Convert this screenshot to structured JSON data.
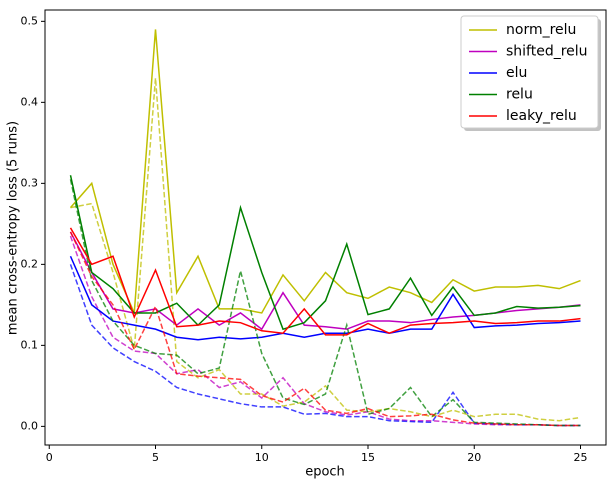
{
  "chart_data": {
    "type": "line",
    "x_label": "epoch",
    "y_label": "mean cross-entropy loss (5 runs)",
    "x": [
      1,
      2,
      3,
      4,
      5,
      6,
      7,
      8,
      9,
      10,
      11,
      12,
      13,
      14,
      15,
      16,
      17,
      18,
      19,
      20,
      21,
      22,
      23,
      24,
      25
    ],
    "xlim": [
      -0.2,
      26.2
    ],
    "xticks": [
      0,
      5,
      10,
      15,
      20,
      25
    ],
    "ylim": [
      -0.023,
      0.514
    ],
    "yticks": [
      {
        "value": 0,
        "label": "0.0"
      },
      0.1,
      0.2,
      0.3,
      0.4,
      0.5
    ],
    "legend": "upper right",
    "series": [
      {
        "name": "norm_relu",
        "color": "#bfbf00",
        "values": [
          0.27,
          0.3,
          0.2,
          0.14,
          0.49,
          0.165,
          0.21,
          0.145,
          0.145,
          0.14,
          0.187,
          0.155,
          0.19,
          0.165,
          0.158,
          0.172,
          0.165,
          0.153,
          0.181,
          0.167,
          0.172,
          0.172,
          0.174,
          0.17,
          0.18
        ],
        "dashed_values": [
          0.27,
          0.275,
          0.19,
          0.095,
          0.43,
          0.08,
          0.06,
          0.07,
          0.04,
          0.04,
          0.025,
          0.03,
          0.05,
          0.02,
          0.018,
          0.022,
          0.018,
          0.012,
          0.02,
          0.012,
          0.015,
          0.015,
          0.009,
          0.007,
          0.011
        ]
      },
      {
        "name": "shifted_relu",
        "color": "#bf00bf",
        "values": [
          0.24,
          0.19,
          0.145,
          0.14,
          0.145,
          0.125,
          0.145,
          0.125,
          0.14,
          0.12,
          0.165,
          0.125,
          0.123,
          0.12,
          0.13,
          0.13,
          0.128,
          0.132,
          0.135,
          0.137,
          0.14,
          0.143,
          0.145,
          0.147,
          0.15
        ],
        "dashed_values": [
          0.235,
          0.16,
          0.11,
          0.093,
          0.09,
          0.065,
          0.07,
          0.048,
          0.055,
          0.035,
          0.06,
          0.028,
          0.018,
          0.014,
          0.018,
          0.009,
          0.007,
          0.007,
          0.005,
          0.003,
          0.002,
          0.002,
          0.002,
          0.001,
          0.001
        ]
      },
      {
        "name": "elu",
        "color": "#0000ff",
        "values": [
          0.21,
          0.15,
          0.13,
          0.125,
          0.12,
          0.11,
          0.107,
          0.11,
          0.108,
          0.11,
          0.115,
          0.11,
          0.115,
          0.115,
          0.12,
          0.115,
          0.12,
          0.12,
          0.163,
          0.122,
          0.124,
          0.125,
          0.127,
          0.128,
          0.13
        ],
        "dashed_values": [
          0.2,
          0.125,
          0.097,
          0.08,
          0.068,
          0.048,
          0.04,
          0.034,
          0.028,
          0.024,
          0.024,
          0.015,
          0.016,
          0.012,
          0.012,
          0.007,
          0.006,
          0.005,
          0.042,
          0.004,
          0.003,
          0.002,
          0.002,
          0.001,
          0.001
        ]
      },
      {
        "name": "relu",
        "color": "#008000",
        "values": [
          0.31,
          0.19,
          0.17,
          0.14,
          0.14,
          0.152,
          0.125,
          0.15,
          0.27,
          0.19,
          0.12,
          0.128,
          0.155,
          0.225,
          0.138,
          0.145,
          0.183,
          0.137,
          0.172,
          0.137,
          0.14,
          0.148,
          0.146,
          0.147,
          0.149
        ],
        "dashed_values": [
          0.305,
          0.18,
          0.13,
          0.1,
          0.09,
          0.088,
          0.065,
          0.072,
          0.192,
          0.09,
          0.035,
          0.027,
          0.04,
          0.125,
          0.015,
          0.022,
          0.048,
          0.012,
          0.033,
          0.005,
          0.004,
          0.003,
          0.002,
          0.001,
          0.001
        ]
      },
      {
        "name": "leaky_relu",
        "color": "#ff0000",
        "values": [
          0.245,
          0.2,
          0.21,
          0.135,
          0.193,
          0.123,
          0.125,
          0.13,
          0.128,
          0.118,
          0.115,
          0.145,
          0.113,
          0.113,
          0.127,
          0.115,
          0.125,
          0.127,
          0.128,
          0.13,
          0.127,
          0.128,
          0.13,
          0.13,
          0.133
        ],
        "dashed_values": [
          0.24,
          0.185,
          0.15,
          0.095,
          0.148,
          0.065,
          0.062,
          0.06,
          0.058,
          0.038,
          0.03,
          0.047,
          0.02,
          0.016,
          0.022,
          0.012,
          0.013,
          0.015,
          0.008,
          0.004,
          0.003,
          0.002,
          0.002,
          0.001,
          0.001
        ]
      }
    ]
  }
}
